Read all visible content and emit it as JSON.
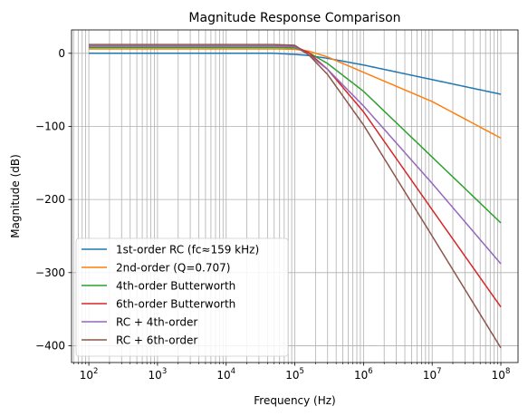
{
  "chart_data": {
    "type": "line",
    "title": "Magnitude Response Comparison",
    "xlabel": "Frequency (Hz)",
    "ylabel": "Magnitude (dB)",
    "x_scale": "log",
    "xlim": [
      56,
      178000000
    ],
    "ylim": [
      -423,
      32
    ],
    "grid": "both (major and minor)",
    "legend_position": "lower-left",
    "x_ticks": [
      {
        "value": 100,
        "base": "10",
        "exp": "2"
      },
      {
        "value": 1000,
        "base": "10",
        "exp": "3"
      },
      {
        "value": 10000,
        "base": "10",
        "exp": "4"
      },
      {
        "value": 100000,
        "base": "10",
        "exp": "5"
      },
      {
        "value": 1000000,
        "base": "10",
        "exp": "6"
      },
      {
        "value": 10000000,
        "base": "10",
        "exp": "7"
      },
      {
        "value": 100000000,
        "base": "10",
        "exp": "8"
      }
    ],
    "y_ticks": [
      {
        "value": 0,
        "label": "0"
      },
      {
        "value": -100,
        "label": "−100"
      },
      {
        "value": -200,
        "label": "−200"
      },
      {
        "value": -300,
        "label": "−300"
      },
      {
        "value": -400,
        "label": "−400"
      }
    ],
    "series": [
      {
        "name": "1st-order RC (fc≈159 kHz)",
        "color": "#1f77b4",
        "x": [
          100,
          1000,
          10000,
          50000,
          100000,
          159000,
          300000,
          1000000,
          10000000,
          100000000
        ],
        "y": [
          0,
          0,
          0,
          0,
          -1.5,
          -3,
          -6.9,
          -16,
          -36,
          -56
        ]
      },
      {
        "name": "2nd-order (Q=0.707)",
        "color": "#ff7f0e",
        "x": [
          100,
          1000,
          10000,
          50000,
          100000,
          159000,
          300000,
          1000000,
          10000000,
          100000000
        ],
        "y": [
          6,
          6,
          6,
          6,
          5.5,
          3,
          -5,
          -26,
          -66,
          -116
        ]
      },
      {
        "name": "4th-order Butterworth",
        "color": "#2ca02c",
        "x": [
          100,
          1000,
          10000,
          50000,
          100000,
          159000,
          300000,
          1000000,
          10000000,
          100000000
        ],
        "y": [
          8,
          8,
          8,
          8,
          7.5,
          1,
          -14,
          -52,
          -142,
          -232
        ]
      },
      {
        "name": "6th-order Butterworth",
        "color": "#d62728",
        "x": [
          100,
          1000,
          10000,
          50000,
          100000,
          159000,
          300000,
          1000000,
          10000000,
          100000000
        ],
        "y": [
          10,
          10,
          10,
          10,
          9.5,
          1,
          -22,
          -80,
          -214,
          -347
        ]
      },
      {
        "name": "RC + 4th-order",
        "color": "#9467bd",
        "x": [
          100,
          1000,
          10000,
          50000,
          100000,
          159000,
          300000,
          1000000,
          10000000,
          100000000
        ],
        "y": [
          10,
          10,
          10,
          10,
          9,
          -2,
          -22,
          -72,
          -178,
          -288
        ]
      },
      {
        "name": "RC + 6th-order",
        "color": "#8c564b",
        "x": [
          100,
          1000,
          10000,
          50000,
          100000,
          159000,
          300000,
          1000000,
          10000000,
          100000000
        ],
        "y": [
          12,
          12,
          12,
          12,
          11,
          -2,
          -29,
          -98,
          -250,
          -403
        ]
      }
    ]
  }
}
